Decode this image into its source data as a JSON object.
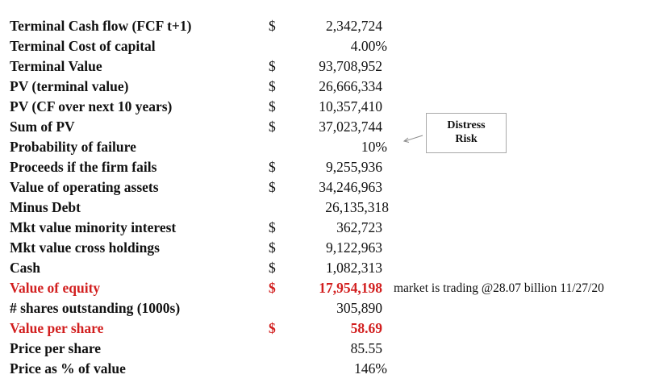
{
  "rows": [
    {
      "label": "Terminal Cash flow (FCF t+1)",
      "dollar": "$",
      "value": "2,342,724"
    },
    {
      "label": "Terminal Cost of capital",
      "dollar": "",
      "value": "4.00%"
    },
    {
      "label": "Terminal Value",
      "dollar": "$",
      "value": "93,708,952"
    },
    {
      "label": "PV (terminal value)",
      "dollar": "$",
      "value": "26,666,334"
    },
    {
      "label": "PV (CF over next 10 years)",
      "dollar": "$",
      "value": "10,357,410"
    },
    {
      "label": "Sum of PV",
      "dollar": "$",
      "value": "37,023,744"
    },
    {
      "label": "Probability of failure",
      "dollar": "",
      "value": "10%"
    },
    {
      "label": "Proceeds if the firm fails",
      "dollar": "$",
      "value": "9,255,936"
    },
    {
      "label": "Value of operating assets",
      "dollar": "$",
      "value": "34,246,963"
    },
    {
      "label": "Minus Debt",
      "dollar": "",
      "value": "26,135,318"
    },
    {
      "label": "Mkt value minority interest",
      "dollar": "$",
      "value": "362,723"
    },
    {
      "label": "Mkt value cross holdings",
      "dollar": "$",
      "value": "9,122,963"
    },
    {
      "label": "Cash",
      "dollar": "$",
      "value": "1,082,313"
    },
    {
      "label": "Value of equity",
      "dollar": "$",
      "value": "17,954,198"
    },
    {
      "label": "# shares outstanding (1000s)",
      "dollar": "",
      "value": "305,890"
    },
    {
      "label": "Value per share",
      "dollar": "$",
      "value": "58.69"
    },
    {
      "label": "Price per share",
      "dollar": "",
      "value": "85.55"
    },
    {
      "label": "Price as % of value",
      "dollar": "",
      "value": "146%"
    }
  ],
  "equity_note": "market is trading @28.07 billion 11/27/20",
  "callout": {
    "line1": "Distress",
    "line2": "Risk"
  },
  "colors": {
    "text": "#111111",
    "highlight": "#d21f1f",
    "callout_border": "#a9a9a9"
  }
}
